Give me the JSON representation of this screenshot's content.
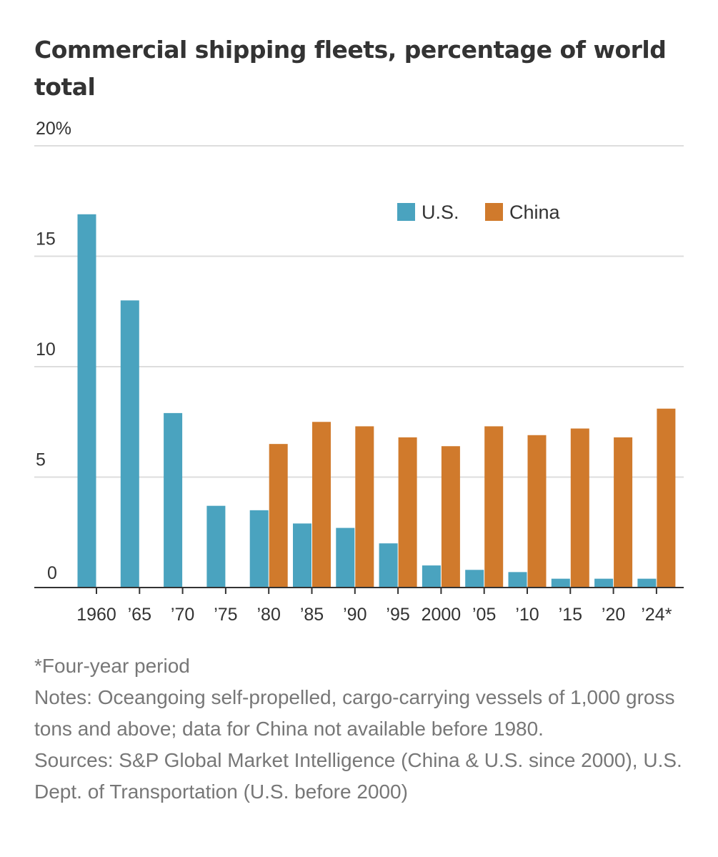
{
  "colors": {
    "us": "#4aa3bf",
    "china": "#d07a2c",
    "grid": "#dddddd",
    "axis": "#333333"
  },
  "chart_data": {
    "type": "bar",
    "title": "Commercial shipping fleets, percentage of world total",
    "categories": [
      "1960",
      "’65",
      "’70",
      "’75",
      "’80",
      "’85",
      "’90",
      "’95",
      "2000",
      "’05",
      "’10",
      "’15",
      "’20",
      "’24*"
    ],
    "series": [
      {
        "name": "U.S.",
        "values": [
          16.9,
          13.0,
          7.9,
          3.7,
          3.5,
          2.9,
          2.7,
          2.0,
          1.0,
          0.8,
          0.7,
          0.4,
          0.4,
          0.4
        ]
      },
      {
        "name": "China",
        "values": [
          null,
          null,
          null,
          null,
          6.5,
          7.5,
          7.3,
          6.8,
          6.4,
          7.3,
          6.9,
          7.2,
          6.8,
          8.1
        ]
      }
    ],
    "ylim": [
      0,
      20
    ],
    "yticks": [
      0,
      5,
      10,
      15,
      20
    ],
    "ytick_labels": [
      "0",
      "5",
      "10",
      "15",
      "20%"
    ],
    "grid": true,
    "legend": "top-right"
  },
  "footnote": "*Four-year period",
  "notes": "Notes: Oceangoing self-propelled, cargo-carrying vessels of 1,000 gross tons and above; data for China not available before 1980.",
  "sources": "Sources: S&P Global Market Intelligence (China & U.S. since 2000), U.S. Dept. of Transportation (U.S. before 2000)"
}
